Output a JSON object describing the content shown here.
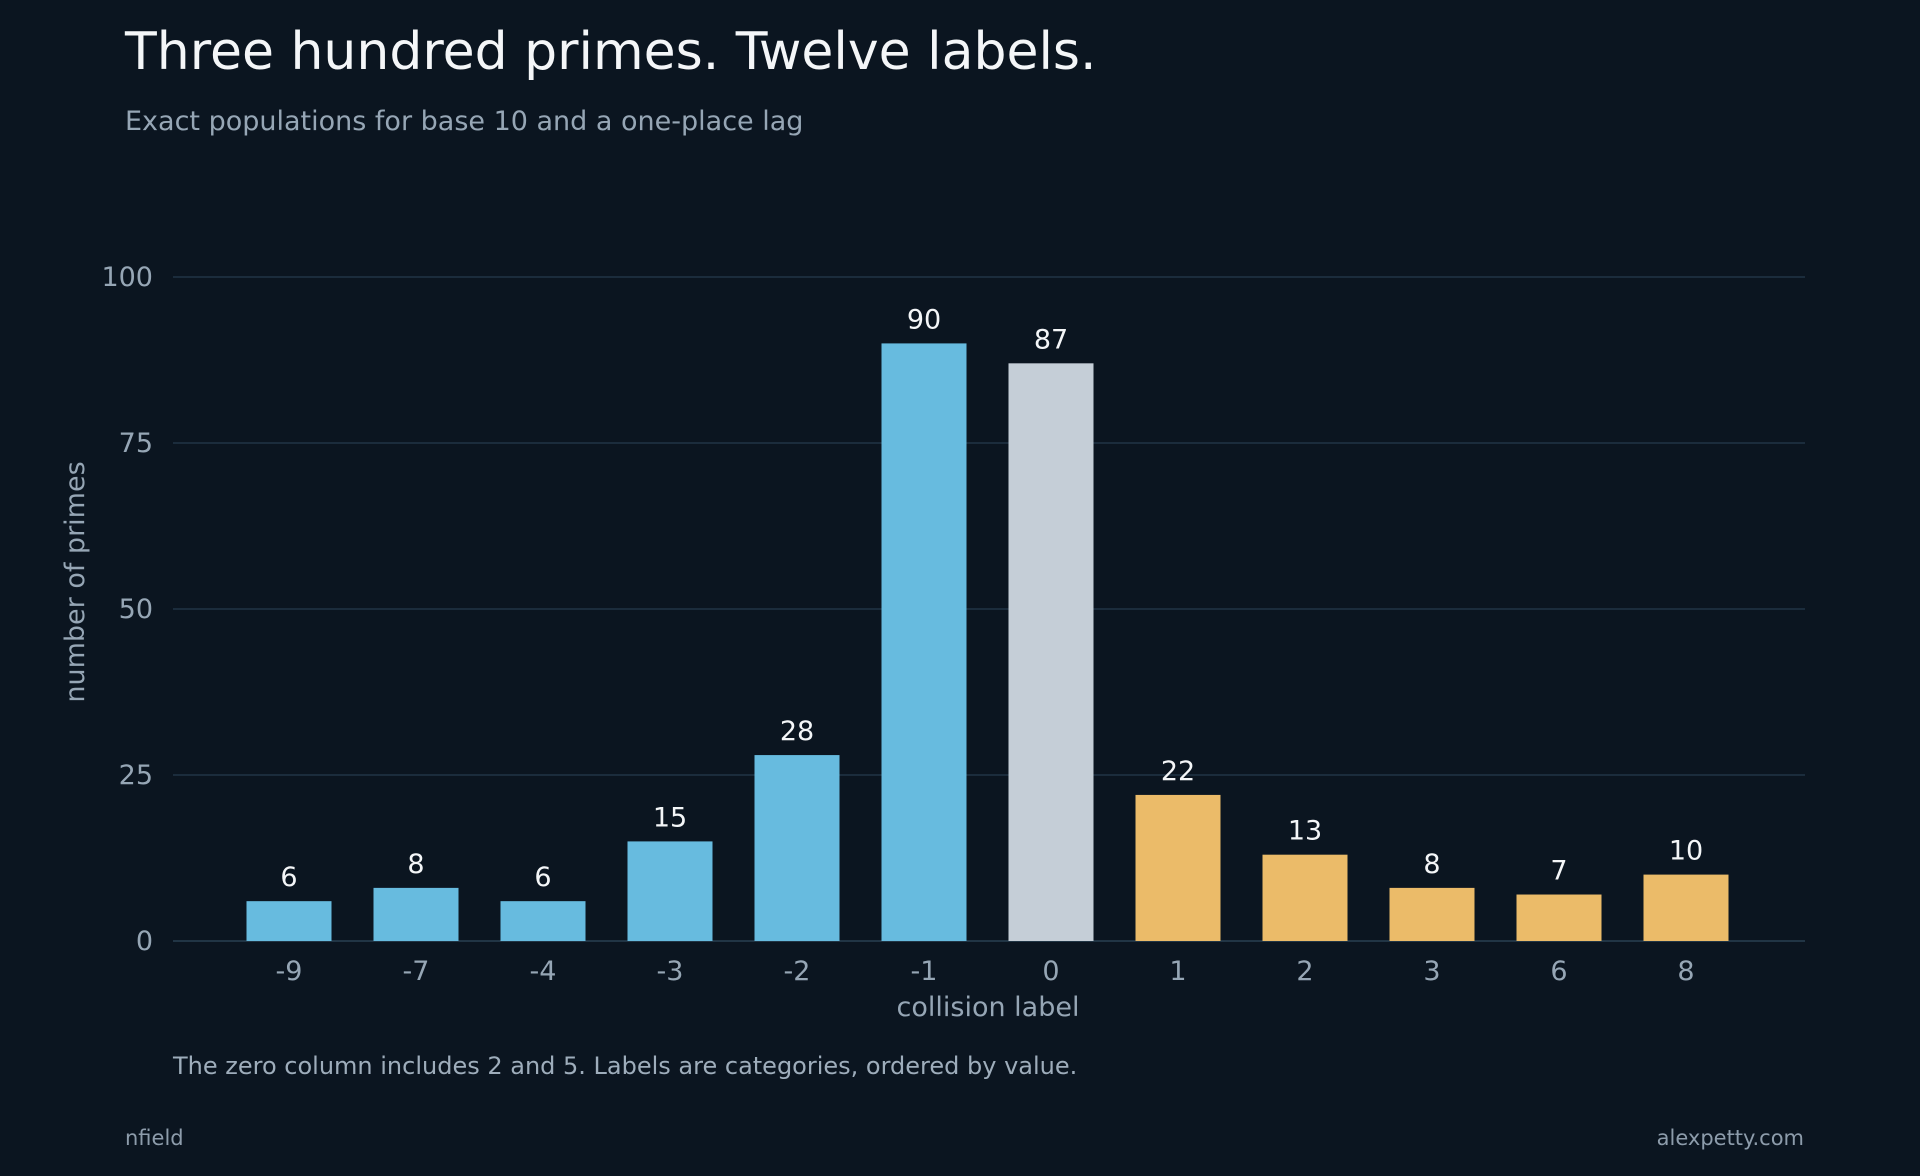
{
  "title": "Three hundred primes. Twelve labels.",
  "subtitle": "Exact populations for base 10 and a one-place lag",
  "note": "The zero column includes 2 and 5. Labels are categories, ordered by value.",
  "footer": {
    "left": "nfield",
    "right": "alexpetty.com"
  },
  "colors": {
    "background": "#0b1520",
    "negative": "#67bbdf",
    "zero": "#c5ced7",
    "positive": "#ebbb69",
    "grid": "#213545",
    "axis_text": "#96a6b5",
    "label_text": "#f4f6f8"
  },
  "chart_data": {
    "type": "bar",
    "categories": [
      "-9",
      "-7",
      "-4",
      "-3",
      "-2",
      "-1",
      "0",
      "1",
      "2",
      "3",
      "6",
      "8"
    ],
    "values": [
      6,
      8,
      6,
      15,
      28,
      90,
      87,
      22,
      13,
      8,
      7,
      10
    ],
    "xlabel": "collision label",
    "ylabel": "number of primes",
    "ylim": [
      0,
      100
    ],
    "yticks": [
      0,
      25,
      50,
      75,
      100
    ],
    "grid": true,
    "data_labels": true
  }
}
